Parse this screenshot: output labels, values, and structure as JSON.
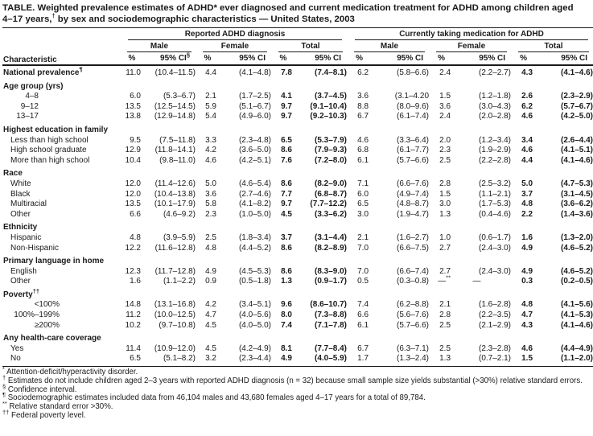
{
  "title": {
    "segments": [
      {
        "t": "TABLE. Weighted prevalence estimates of ADHD* ever diagnosed and current medication treatment for ADHD among children aged"
      },
      {
        "br": true
      },
      {
        "t": "4–17 years,"
      },
      {
        "t": "†",
        "sup": true
      },
      {
        "t": " by sex and sociodemographic characteristics — United States, 2003"
      }
    ]
  },
  "header": {
    "characteristic": "Characteristic",
    "groups": [
      {
        "label": "Reported ADHD diagnosis",
        "subgroups": [
          "Male",
          "Female",
          "Total"
        ]
      },
      {
        "label": "Currently taking medication for ADHD",
        "subgroups": [
          "Male",
          "Female",
          "Total"
        ]
      }
    ],
    "pct_label": "%",
    "ci_label": "95% CI",
    "first_ci_sup": "§",
    "bold_value_indexes": [
      4,
      5,
      10,
      11
    ]
  },
  "rows": [
    {
      "type": "data",
      "label": "National prevalence",
      "label_sup": "¶",
      "indent": "none",
      "values": [
        "11.0",
        "(10.4–11.5)",
        "4.4",
        "(4.1–4.8)",
        "7.8",
        "(7.4–8.1)",
        "6.2",
        "(5.8–6.6)",
        "2.4",
        "(2.2–2.7)",
        "4.3",
        "(4.1–4.6)"
      ]
    },
    {
      "type": "section",
      "label": "Age group (yrs)"
    },
    {
      "type": "data",
      "label": "4–8",
      "indent": "age",
      "values": [
        "6.0",
        "(5.3–6.7)",
        "2.1",
        "(1.7–2.5)",
        "4.1",
        "(3.7–4.5)",
        "3.6",
        "(3.1–4.20",
        "1.5",
        "(1.2–1.8)",
        "2.6",
        "(2.3–2.9)"
      ]
    },
    {
      "type": "data",
      "label": "9–12",
      "indent": "age",
      "values": [
        "13.5",
        "(12.5–14.5)",
        "5.9",
        "(5.1–6.7)",
        "9.7",
        "(9.1–10.4)",
        "8.8",
        "(8.0–9.6)",
        "3.6",
        "(3.0–4.3)",
        "6.2",
        "(5.7–6.7)"
      ]
    },
    {
      "type": "data",
      "label": "13–17",
      "indent": "age",
      "values": [
        "13.8",
        "(12.9–14.8)",
        "5.4",
        "(4.9–6.0)",
        "9.7",
        "(9.2–10.3)",
        "6.7",
        "(6.1–7.4)",
        "2.4",
        "(2.0–2.8)",
        "4.6",
        "(4.2–5.0)"
      ]
    },
    {
      "type": "section",
      "label": "Highest education in family"
    },
    {
      "type": "data",
      "label": "Less than high school",
      "indent": "sub",
      "values": [
        "9.5",
        "(7.5–11.8)",
        "3.3",
        "(2.3–4.8)",
        "6.5",
        "(5.3–7.9)",
        "4.6",
        "(3.3–6.4)",
        "2.0",
        "(1.2–3.4)",
        "3.4",
        "(2.6–4.4)"
      ]
    },
    {
      "type": "data",
      "label": "High school graduate",
      "indent": "sub",
      "values": [
        "12.9",
        "(11.8–14.1)",
        "4.2",
        "(3.6–5.0)",
        "8.6",
        "(7.9–9.3)",
        "6.8",
        "(6.1–7.7)",
        "2.3",
        "(1.9–2.9)",
        "4.6",
        "(4.1–5.1)"
      ]
    },
    {
      "type": "data",
      "label": "More than high school",
      "indent": "sub",
      "values": [
        "10.4",
        "(9.8–11.0)",
        "4.6",
        "(4.2–5.1)",
        "7.6",
        "(7.2–8.0)",
        "6.1",
        "(5.7–6.6)",
        "2.5",
        "(2.2–2.8)",
        "4.4",
        "(4.1–4.6)"
      ]
    },
    {
      "type": "section",
      "label": "Race"
    },
    {
      "type": "data",
      "label": "White",
      "indent": "sub",
      "values": [
        "12.0",
        "(11.4–12.6)",
        "5.0",
        "(4.6–5.4)",
        "8.6",
        "(8.2–9.0)",
        "7.1",
        "(6.6–7.6)",
        "2.8",
        "(2.5–3.2)",
        "5.0",
        "(4.7–5.3)"
      ]
    },
    {
      "type": "data",
      "label": "Black",
      "indent": "sub",
      "values": [
        "12.0",
        "(10.4–13.8)",
        "3.6",
        "(2.7–4.6)",
        "7.7",
        "(6.8–8.7)",
        "6.0",
        "(4.9–7.4)",
        "1.5",
        "(1.1–2.1)",
        "3.7",
        "(3.1–4.5)"
      ]
    },
    {
      "type": "data",
      "label": "Multiracial",
      "indent": "sub",
      "values": [
        "13.5",
        "(10.1–17.9)",
        "5.8",
        "(4.1–8.2)",
        "9.7",
        "(7.7–12.2)",
        "6.5",
        "(4.8–8.7)",
        "3.0",
        "(1.7–5.3)",
        "4.8",
        "(3.6–6.2)"
      ]
    },
    {
      "type": "data",
      "label": "Other",
      "indent": "sub",
      "values": [
        "6.6",
        "(4.6–9.2)",
        "2.3",
        "(1.0–5.0)",
        "4.5",
        "(3.3–6.2)",
        "3.0",
        "(1.9–4.7)",
        "1.3",
        "(0.4–4.6)",
        "2.2",
        "(1.4–3.6)"
      ]
    },
    {
      "type": "section",
      "label": "Ethnicity"
    },
    {
      "type": "data",
      "label": "Hispanic",
      "indent": "sub",
      "values": [
        "4.8",
        "(3.9–5.9)",
        "2.5",
        "(1.8–3.4)",
        "3.7",
        "(3.1–4.4)",
        "2.1",
        "(1.6–2.7)",
        "1.0",
        "(0.6–1.7)",
        "1.6",
        "(1.3–2.0)"
      ]
    },
    {
      "type": "data",
      "label": "Non-Hispanic",
      "indent": "sub",
      "values": [
        "12.2",
        "(11.6–12.8)",
        "4.8",
        "(4.4–5.2)",
        "8.6",
        "(8.2–8.9)",
        "7.0",
        "(6.6–7.5)",
        "2.7",
        "(2.4–3.0)",
        "4.9",
        "(4.6–5.2)"
      ]
    },
    {
      "type": "section",
      "label": "Primary language in home"
    },
    {
      "type": "data",
      "label": "English",
      "indent": "sub",
      "values": [
        "12.3",
        "(11.7–12.8)",
        "4.9",
        "(4.5–5.3)",
        "8.6",
        "(8.3–9.0)",
        "7.0",
        "(6.6–7.4)",
        "2.7",
        "(2.4–3.0)",
        "4.9",
        "(4.6–5.2)"
      ]
    },
    {
      "type": "data",
      "label": "Other",
      "indent": "sub",
      "values": [
        "1.6",
        "(1.1–2.2)",
        "0.9",
        "(0.5–1.8)",
        "1.3",
        "(0.9–1.7)",
        "0.5",
        "(0.3–0.8)",
        "—**",
        "—",
        "0.3",
        "(0.2–0.5)"
      ]
    },
    {
      "type": "section",
      "label": "Poverty",
      "label_sup": "††"
    },
    {
      "type": "data",
      "label": "<100%",
      "indent": "pov",
      "values": [
        "14.8",
        "(13.1–16.8)",
        "4.2",
        "(3.4–5.1)",
        "9.6",
        "(8.6–10.7)",
        "7.4",
        "(6.2–8.8)",
        "2.1",
        "(1.6–2.8)",
        "4.8",
        "(4.1–5.6)"
      ]
    },
    {
      "type": "data",
      "label": "100%–199%",
      "indent": "pov",
      "values": [
        "11.2",
        "(10.0–12.5)",
        "4.7",
        "(4.0–5.6)",
        "8.0",
        "(7.3–8.8)",
        "6.6",
        "(5.6–7.6)",
        "2.8",
        "(2.2–3.5)",
        "4.7",
        "(4.1–5.3)"
      ]
    },
    {
      "type": "data",
      "label": "≥200%",
      "indent": "pov",
      "values": [
        "10.2",
        "(9.7–10.8)",
        "4.5",
        "(4.0–5.0)",
        "7.4",
        "(7.1–7.8)",
        "6.1",
        "(5.7–6.6)",
        "2.5",
        "(2.1–2.9)",
        "4.3",
        "(4.1–4.6)"
      ]
    },
    {
      "type": "section",
      "label": "Any health-care coverage"
    },
    {
      "type": "data",
      "label": "Yes",
      "indent": "sub",
      "values": [
        "11.4",
        "(10.9–12.0)",
        "4.5",
        "(4.2–4.9)",
        "8.1",
        "(7.7–8.4)",
        "6.7",
        "(6.3–7.1)",
        "2.5",
        "(2.3–2.8)",
        "4.6",
        "(4.4–4.9)"
      ]
    },
    {
      "type": "data",
      "label": "No",
      "indent": "sub",
      "values": [
        "6.5",
        "(5.1–8.2)",
        "3.2",
        "(2.3–4.4)",
        "4.9",
        "(4.0–5.9)",
        "1.7",
        "(1.3–2.4)",
        "1.3",
        "(0.7–2.1)",
        "1.5",
        "(1.1–2.0)"
      ]
    }
  ],
  "footnotes": [
    {
      "marker": "*",
      "text": "Attention-deficit/hyperactivity disorder."
    },
    {
      "marker": "†",
      "text": "Estimates do not include children aged 2–3 years with reported ADHD diagnosis (n = 32) because small sample size yields substantial (>30%) relative standard errors."
    },
    {
      "marker": "§",
      "text": "Confidence interval."
    },
    {
      "marker": "¶",
      "text": "Sociodemographic estimates included data from 46,104 males and 43,680 females aged 4–17 years for a total of 89,784."
    },
    {
      "marker": "**",
      "text": "Relative standard error >30%."
    },
    {
      "marker": "††",
      "text": "Federal poverty level."
    }
  ]
}
